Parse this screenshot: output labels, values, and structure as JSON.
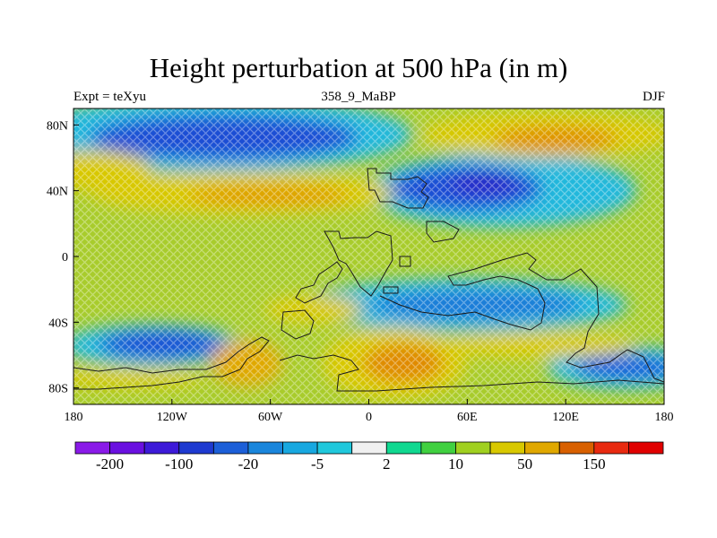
{
  "title": "Height perturbation at 500 hPa (in m)",
  "left_string": "Expt = teXyu",
  "center_string": "358_9_MaBP",
  "right_string": "DJF",
  "chart_data": {
    "type": "heatmap",
    "projection": "cylindrical-equidistant",
    "xlim": [
      -180,
      180
    ],
    "ylim": [
      -90,
      90
    ],
    "x_tick_labels": [
      "180",
      "120W",
      "60W",
      "0",
      "60E",
      "120E",
      "180"
    ],
    "y_tick_labels": [
      "80N",
      "40N",
      "0",
      "40S",
      "80S"
    ],
    "colorbar": {
      "levels": [
        "-200",
        "-100",
        "-20",
        "-5",
        "2",
        "10",
        "50",
        "150"
      ],
      "colors": [
        "#8a1ae8",
        "#6a10e0",
        "#3d1ad8",
        "#1e3ad0",
        "#1c5fd8",
        "#1a86dc",
        "#18a8e0",
        "#20c8dc",
        "#f0f0f0",
        "#10d890",
        "#40d040",
        "#a0d020",
        "#d8c800",
        "#e0a800",
        "#d86000",
        "#e82a10",
        "#e00000"
      ]
    }
  }
}
